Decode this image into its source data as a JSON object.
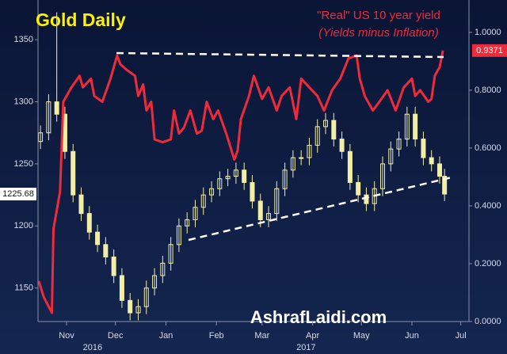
{
  "chart_data": {
    "type": "candlestick",
    "title": "Gold Daily",
    "watermark": "AshrafLaidi.com",
    "xlim": [
      13.5,
      278
    ],
    "xticks": [
      {
        "value": 31,
        "label": "Nov"
      },
      {
        "value": 61,
        "label": "Dec"
      },
      {
        "value": 92,
        "label": "Jan"
      },
      {
        "value": 123,
        "label": "Feb"
      },
      {
        "value": 151,
        "label": "Mar"
      },
      {
        "value": 182,
        "label": "Apr"
      },
      {
        "value": 212,
        "label": "May"
      },
      {
        "value": 243,
        "label": "Jun"
      },
      {
        "value": 273,
        "label": "Jul"
      }
    ],
    "x_group_labels": [
      {
        "value": 47,
        "label": "2016"
      },
      {
        "value": 178,
        "label": "2017"
      }
    ],
    "ylim": [
      1123,
      1382
    ],
    "yticks": [
      1150,
      1200,
      1250,
      1300,
      1350
    ],
    "y2lim": [
      0,
      1.112
    ],
    "y2ticks": [
      {
        "value": 0,
        "label": "0.0000"
      },
      {
        "value": 0.2,
        "label": "0.2000"
      },
      {
        "value": 0.4,
        "label": "0.4000"
      },
      {
        "value": 0.6,
        "label": "0.6000"
      },
      {
        "value": 0.8,
        "label": "0.8000"
      },
      {
        "value": 1,
        "label": "1.0000"
      }
    ],
    "series": [
      {
        "type": "candlestick",
        "color": "#f3eea6",
        "x": [
          15,
          20,
          25,
          30,
          35,
          40,
          45,
          50,
          55,
          60,
          65,
          70,
          75,
          80,
          85,
          90,
          95,
          100,
          105,
          110,
          115,
          120,
          125,
          130,
          135,
          140,
          145,
          150,
          155,
          160,
          165,
          170,
          175,
          180,
          185,
          190,
          195,
          200,
          205,
          210,
          215,
          220,
          225,
          230,
          235,
          240,
          245,
          250,
          255,
          260,
          263
        ],
        "open": [
          1268,
          1275,
          1300,
          1290,
          1260,
          1225,
          1210,
          1195,
          1185,
          1175,
          1160,
          1140,
          1130,
          1135,
          1150,
          1160,
          1170,
          1185,
          1200,
          1205,
          1215,
          1225,
          1230,
          1238,
          1240,
          1245,
          1235,
          1220,
          1205,
          1210,
          1230,
          1245,
          1255,
          1255,
          1265,
          1280,
          1285,
          1270,
          1260,
          1235,
          1225,
          1218,
          1230,
          1250,
          1262,
          1270,
          1290,
          1270,
          1255,
          1250,
          1240
        ],
        "high": [
          1281,
          1306,
          1372,
          1296,
          1266,
          1231,
          1216,
          1201,
          1191,
          1181,
          1166,
          1146,
          1141,
          1156,
          1166,
          1176,
          1191,
          1206,
          1211,
          1221,
          1231,
          1236,
          1244,
          1246,
          1251,
          1251,
          1241,
          1226,
          1216,
          1236,
          1251,
          1261,
          1261,
          1271,
          1286,
          1291,
          1291,
          1276,
          1266,
          1241,
          1231,
          1236,
          1256,
          1268,
          1276,
          1296,
          1296,
          1276,
          1261,
          1256,
          1246
        ],
        "low": [
          1262,
          1269,
          1284,
          1254,
          1219,
          1204,
          1189,
          1179,
          1169,
          1154,
          1134,
          1124,
          1124,
          1129,
          1144,
          1154,
          1164,
          1179,
          1194,
          1199,
          1209,
          1219,
          1224,
          1232,
          1234,
          1229,
          1214,
          1199,
          1199,
          1204,
          1224,
          1239,
          1249,
          1249,
          1259,
          1274,
          1264,
          1254,
          1229,
          1219,
          1212,
          1212,
          1224,
          1244,
          1256,
          1264,
          1264,
          1249,
          1244,
          1234,
          1220
        ],
        "close": [
          1275,
          1300,
          1290,
          1260,
          1225,
          1210,
          1195,
          1185,
          1175,
          1160,
          1140,
          1130,
          1135,
          1150,
          1160,
          1170,
          1185,
          1200,
          1205,
          1215,
          1225,
          1230,
          1238,
          1240,
          1245,
          1235,
          1220,
          1205,
          1210,
          1230,
          1245,
          1255,
          1255,
          1265,
          1280,
          1285,
          1270,
          1260,
          1235,
          1225,
          1218,
          1230,
          1250,
          1262,
          1270,
          1290,
          1270,
          1255,
          1250,
          1240,
          1225.68
        ],
        "last_value_label": {
          "value": 1225.68,
          "label": "1225.68"
        }
      },
      {
        "type": "line",
        "name": "\"Real\" US 10 year yield",
        "subtitle": "(Yields minus Inflation)",
        "color": "#ee2b3b",
        "axis": "y2",
        "x": [
          14,
          17,
          22,
          23,
          27,
          29,
          34,
          39,
          41,
          46,
          48,
          53,
          58,
          62,
          64,
          68,
          73,
          75,
          78,
          80,
          83,
          85,
          90,
          95,
          97,
          100,
          103,
          107,
          111,
          114,
          117,
          121,
          124,
          129,
          134,
          136,
          138,
          143,
          146,
          151,
          155,
          160,
          163,
          168,
          172,
          175,
          180,
          185,
          189,
          194,
          199,
          204,
          209,
          211,
          214,
          219,
          223,
          228,
          233,
          238,
          243,
          245,
          248,
          253,
          255,
          257,
          260,
          262
        ],
        "values": [
          0.14,
          0.085,
          0.03,
          0.32,
          0.45,
          0.76,
          0.81,
          0.85,
          0.81,
          0.84,
          0.78,
          0.76,
          0.84,
          0.92,
          0.89,
          0.87,
          0.85,
          0.78,
          0.82,
          0.73,
          0.76,
          0.63,
          0.62,
          0.63,
          0.73,
          0.65,
          0.67,
          0.73,
          0.65,
          0.66,
          0.76,
          0.7,
          0.73,
          0.65,
          0.56,
          0.59,
          0.7,
          0.78,
          0.85,
          0.77,
          0.81,
          0.73,
          0.78,
          0.81,
          0.7,
          0.84,
          0.81,
          0.78,
          0.73,
          0.8,
          0.84,
          0.91,
          0.92,
          0.84,
          0.78,
          0.73,
          0.76,
          0.8,
          0.73,
          0.81,
          0.84,
          0.78,
          0.8,
          0.76,
          0.77,
          0.85,
          0.88,
          0.9371
        ],
        "last_value_label": {
          "value": 0.9371,
          "label": "0.9371"
        }
      }
    ]
  }
}
